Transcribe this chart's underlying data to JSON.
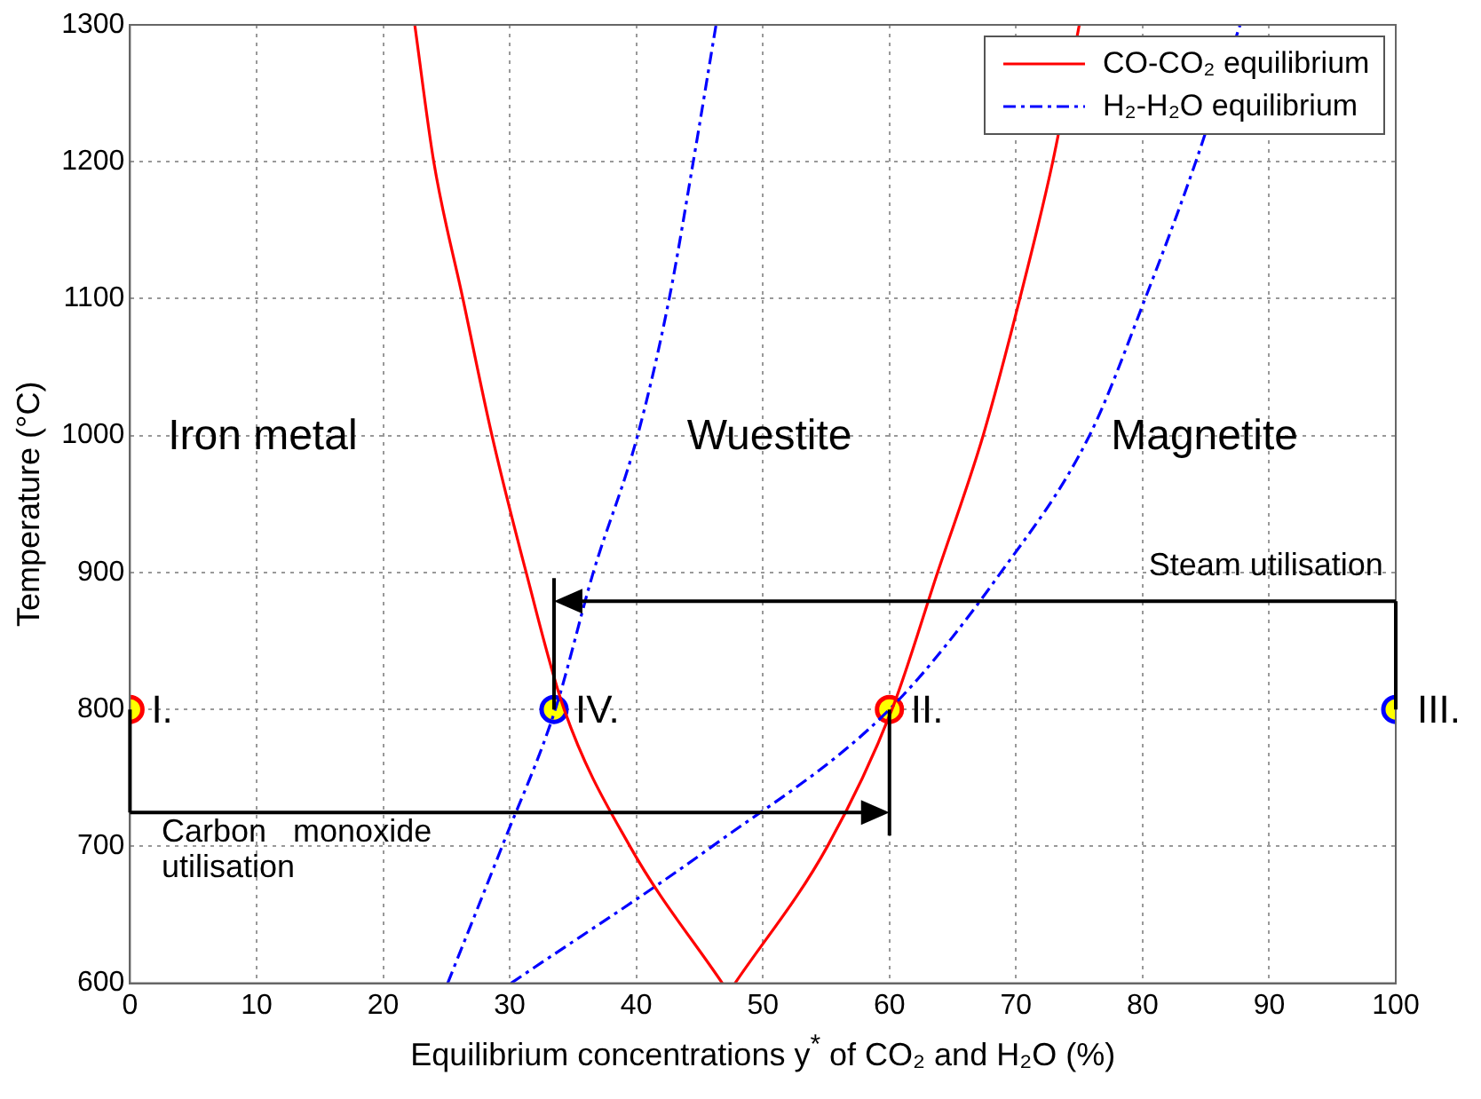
{
  "chart_data": {
    "type": "line",
    "xlabel": "Equilibrium concentrations y$^{*}$ of CO₂ and H₂O (%)",
    "ylabel": "Temperature (°C)",
    "xlim": [
      0,
      100
    ],
    "xticks": [
      0,
      10,
      20,
      30,
      40,
      50,
      60,
      70,
      80,
      90,
      100
    ],
    "ylim": [
      600,
      1300
    ],
    "yticks": [
      600,
      700,
      800,
      900,
      1000,
      1100,
      1200,
      1300
    ],
    "grid": true,
    "legend": "top right",
    "series": [
      {
        "name": "CO-CO₂ equilibrium",
        "color": "#ff0000",
        "line_style": "solid",
        "x": [
          22.5,
          24.0,
          26.3,
          28.6,
          31.3,
          34.3,
          39.5,
          46.8
        ],
        "values": [
          1300,
          1200,
          1100,
          1000,
          900,
          800,
          700,
          600
        ]
      },
      {
        "color": "#ff0000",
        "line_style": "solid",
        "x": [
          47.8,
          55.1,
          60.2,
          63.8,
          67.4,
          70.3,
          72.9,
          75.0
        ],
        "values": [
          600,
          700,
          800,
          900,
          1000,
          1100,
          1200,
          1300
        ]
      },
      {
        "name": "H₂-H₂O equilibrium",
        "color": "#0000ff",
        "line_style": "dashed",
        "x": [
          25.1,
          29.4,
          33.6,
          36.6,
          40.1,
          42.6,
          44.5,
          46.3
        ],
        "values": [
          600,
          700,
          800,
          900,
          1000,
          1100,
          1200,
          1300
        ]
      },
      {
        "color": "#0000ff",
        "line_style": "dashed",
        "x": [
          30.1,
          46.0,
          60.0,
          68.8,
          75.8,
          80.2,
          84.2,
          87.7
        ],
        "values": [
          600,
          700,
          800,
          900,
          1000,
          1100,
          1200,
          1300
        ]
      },
      {
        "type": "scatter",
        "marker": "circle",
        "colors": [
          "#ff0000",
          "#0000ff",
          "#ff0000",
          "#0000ff"
        ],
        "x": [
          0,
          33.5,
          60,
          100
        ],
        "values": [
          800,
          800,
          800,
          800
        ]
      }
    ],
    "annotations": [
      {
        "text": "I.",
        "x": 0,
        "y": 800
      },
      {
        "text": "IV.",
        "x": 33.5,
        "y": 800
      },
      {
        "text": "II.",
        "x": 60,
        "y": 800
      },
      {
        "text": "III.",
        "x": 100,
        "y": 800
      },
      "Iron metal",
      "Wuestite",
      "Magnetite",
      "Carbon   monoxide utilisation",
      "Steam utilisation"
    ]
  }
}
